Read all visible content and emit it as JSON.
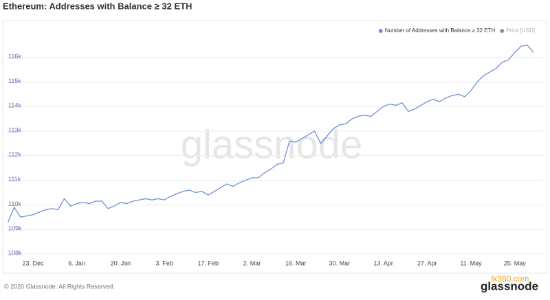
{
  "chart_data": {
    "type": "line",
    "title": "Ethereum: Addresses with Balance ≥ 32 ETH",
    "categories": [
      null,
      null,
      null,
      null,
      "23. Dec",
      null,
      null,
      null,
      null,
      null,
      null,
      "6. Jan",
      null,
      null,
      null,
      null,
      null,
      null,
      "20. Jan",
      null,
      null,
      null,
      null,
      null,
      null,
      "3. Feb",
      null,
      null,
      null,
      null,
      null,
      null,
      "17. Feb",
      null,
      null,
      null,
      null,
      null,
      null,
      "2. Mar",
      null,
      null,
      null,
      null,
      null,
      null,
      "16. Mar",
      null,
      null,
      null,
      null,
      null,
      null,
      "30. Mar",
      null,
      null,
      null,
      null,
      null,
      null,
      "13. Apr",
      null,
      null,
      null,
      null,
      null,
      null,
      "27. Apr",
      null,
      null,
      null,
      null,
      null,
      null,
      "11. May",
      null,
      null,
      null,
      null,
      null,
      null,
      "25. May",
      null,
      null,
      null
    ],
    "series": [
      {
        "name": "Number of Addresses with Balance ≥ 32 ETH",
        "color": "#6f8fd6",
        "values": [
          109300,
          109900,
          109500,
          109550,
          109600,
          109700,
          109800,
          109850,
          109800,
          110250,
          109950,
          110050,
          110100,
          110050,
          110150,
          110150,
          109850,
          109950,
          110100,
          110050,
          110150,
          110200,
          110250,
          110200,
          110250,
          110200,
          110350,
          110450,
          110550,
          110600,
          110500,
          110550,
          110400,
          110550,
          110700,
          110850,
          110750,
          110900,
          111000,
          111100,
          111100,
          111300,
          111450,
          111650,
          111700,
          112600,
          112550,
          112700,
          112850,
          113000,
          112500,
          112800,
          113100,
          113250,
          113300,
          113500,
          113600,
          113650,
          113600,
          113800,
          114000,
          114100,
          114050,
          114150,
          113800,
          113900,
          114050,
          114200,
          114300,
          114200,
          114350,
          114450,
          114500,
          114400,
          114650,
          115000,
          115250,
          115400,
          115550,
          115800,
          115900,
          116200,
          116450,
          116500,
          116200
        ]
      }
    ],
    "hidden_series": [
      {
        "name": "Price [USD]",
        "color": "#777777"
      }
    ],
    "ylim": [
      108000,
      116500
    ],
    "yticks": [
      {
        "value": 108000,
        "label": "108k"
      },
      {
        "value": 109000,
        "label": "109k"
      },
      {
        "value": 110000,
        "label": "110k"
      },
      {
        "value": 111000,
        "label": "111k"
      },
      {
        "value": 112000,
        "label": "112k"
      },
      {
        "value": 113000,
        "label": "113k"
      },
      {
        "value": 114000,
        "label": "114k"
      },
      {
        "value": 115000,
        "label": "115k"
      },
      {
        "value": 116000,
        "label": "116k"
      }
    ],
    "grid": true,
    "legend": "top-right",
    "watermark": "glassnode",
    "footer": "© 2020 Glassnode. All Rights Reserved.",
    "logo": "glassnode",
    "overlay_watermark": "lk360.com"
  }
}
